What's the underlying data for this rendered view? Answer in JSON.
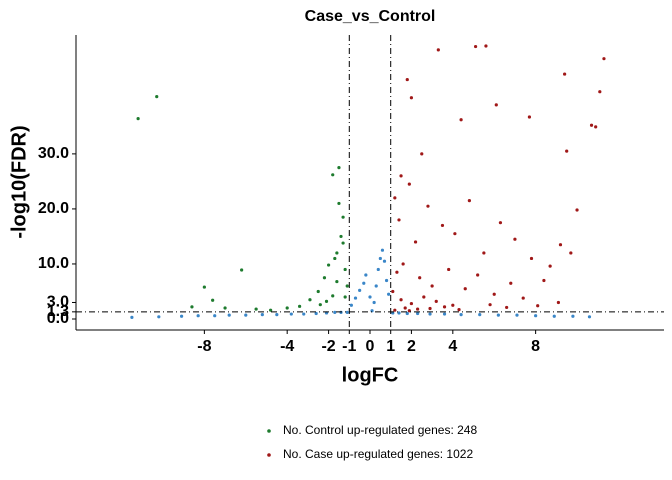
{
  "chart_data": {
    "type": "scatter",
    "title": "Case_vs_Control",
    "x_label": "logFC",
    "y_label": "-log10(FDR)",
    "xlim": [
      -14.2,
      14.2
    ],
    "ylim": [
      -2,
      51.6
    ],
    "xticks": [
      -8,
      -4,
      -2,
      -1,
      0,
      1,
      2,
      4,
      8
    ],
    "yticks": [
      {
        "value": 0,
        "label": "0.0"
      },
      {
        "value": 1.3,
        "label": "1.3"
      },
      {
        "value": 3,
        "label": "3.0"
      },
      {
        "value": 10,
        "label": "10.0"
      },
      {
        "value": 20,
        "label": "20.0"
      },
      {
        "value": 30,
        "label": "30.0"
      }
    ],
    "vlines": [
      -1,
      1
    ],
    "hline": 1.3,
    "series": [
      {
        "color": "#3a86c8",
        "x": [
          -11.5,
          -10.2,
          -9.1,
          -8.3,
          -7.5,
          -6.8,
          -6.0,
          -5.2,
          -4.5,
          -3.8,
          -3.2,
          -2.6,
          -2.1,
          -1.7,
          -1.4,
          -1.1,
          -0.9,
          -0.7,
          -0.5,
          -0.3,
          -0.2,
          0,
          0.1,
          0.2,
          0.3,
          0.4,
          0.5,
          0.6,
          0.7,
          0.8,
          0.9,
          1.1,
          1.4,
          1.8,
          2.3,
          2.9,
          3.6,
          4.4,
          5.3,
          6.2,
          7.1,
          8.0,
          8.9,
          9.8,
          10.6
        ],
        "values": [
          0.3,
          0.4,
          0.5,
          0.6,
          0.6,
          0.7,
          0.7,
          0.8,
          0.8,
          0.9,
          0.9,
          1.0,
          1.1,
          1.2,
          1.2,
          1.2,
          2.5,
          3.8,
          5.2,
          6.5,
          8.0,
          4.0,
          1.5,
          3.0,
          6.0,
          9.0,
          11.0,
          12.5,
          10.5,
          7.0,
          4.5,
          1.1,
          1.1,
          1.0,
          1.0,
          0.9,
          0.9,
          0.8,
          0.8,
          0.7,
          0.7,
          0.6,
          0.5,
          0.5,
          0.4
        ]
      },
      {
        "name": "No. Control up-regulated genes: 248",
        "color": "#1e7b2e",
        "x": [
          -11.2,
          -10.3,
          -8.6,
          -8.0,
          -7.6,
          -7.0,
          -6.2,
          -5.5,
          -4.8,
          -4.0,
          -3.4,
          -2.9,
          -2.5,
          -2.2,
          -2.0,
          -1.8,
          -1.6,
          -1.5,
          -1.4,
          -1.3,
          -1.2,
          -1.1,
          -1.5,
          -1.8,
          -2.1,
          -1.3,
          -1.7,
          -2.4,
          -1.2,
          -1.6
        ],
        "values": [
          36.4,
          40.4,
          2.2,
          5.8,
          3.4,
          2.0,
          8.9,
          1.8,
          1.6,
          2.0,
          2.3,
          3.5,
          5.0,
          7.5,
          9.8,
          4.2,
          12.0,
          27.5,
          15.0,
          13.8,
          9.0,
          6.0,
          21.0,
          26.2,
          3.2,
          18.5,
          11.0,
          2.6,
          4.0,
          6.8
        ]
      },
      {
        "name": "No. Case up-regulated genes: 1022",
        "color": "#a01818",
        "x": [
          11.3,
          11.1,
          9.4,
          5.6,
          5.1,
          3.3,
          1.8,
          2.0,
          10.9,
          10.7,
          9.5,
          7.7,
          10.0,
          6.1,
          4.4,
          2.5,
          1.5,
          1.2,
          1.4,
          1.9,
          2.2,
          2.8,
          3.5,
          4.1,
          4.8,
          5.5,
          6.3,
          7.0,
          7.8,
          8.4,
          8.7,
          9.2,
          9.7,
          1.3,
          1.6,
          2.4,
          3.0,
          3.8,
          4.6,
          5.2,
          6.0,
          6.8,
          7.4,
          1.1,
          1.5,
          2.0,
          2.6,
          3.2,
          4.0,
          1.7,
          2.3,
          3.6,
          5.8,
          9.1,
          1.2,
          1.9,
          2.9,
          4.3,
          8.1,
          6.6
        ],
        "values": [
          47.3,
          41.3,
          44.5,
          49.6,
          49.5,
          48.9,
          43.5,
          40.2,
          34.9,
          35.2,
          30.5,
          36.7,
          19.8,
          38.9,
          36.2,
          30.0,
          26.0,
          22.0,
          18.0,
          24.5,
          14.0,
          20.5,
          17.0,
          15.5,
          21.5,
          12.0,
          17.5,
          14.5,
          11.0,
          7.0,
          9.6,
          13.5,
          12.0,
          8.5,
          10.0,
          7.5,
          6.0,
          9.0,
          5.5,
          8.0,
          4.5,
          6.5,
          3.8,
          5.0,
          3.5,
          2.8,
          4.0,
          3.2,
          2.5,
          2.0,
          1.8,
          2.2,
          2.6,
          3.0,
          1.6,
          1.5,
          1.9,
          1.7,
          2.4,
          2.1
        ]
      }
    ]
  }
}
